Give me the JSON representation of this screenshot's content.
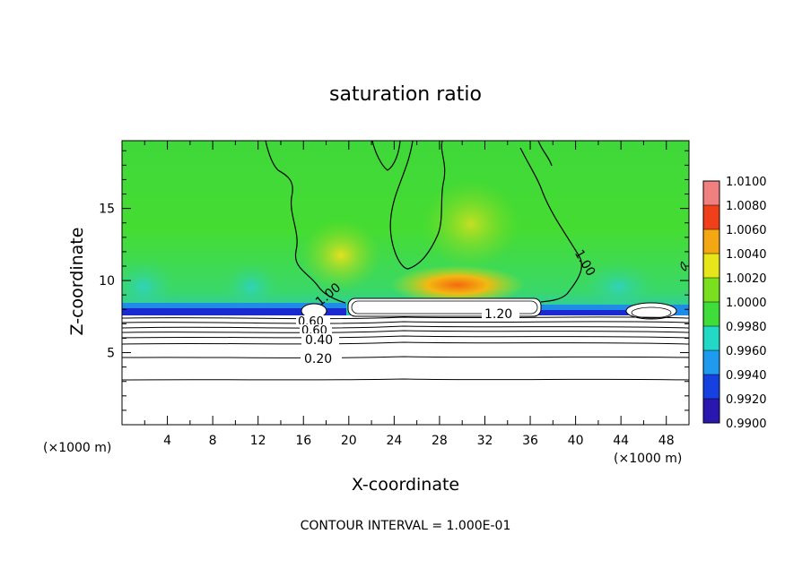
{
  "chart_data": {
    "type": "heatmap",
    "title": "saturation ratio",
    "xlabel": "X-coordinate",
    "ylabel": "Z-coordinate",
    "x_unit": "(×1000 m)",
    "x_ticks": [
      4,
      8,
      12,
      16,
      20,
      24,
      28,
      32,
      36,
      40,
      44,
      48
    ],
    "y_ticks": [
      5,
      10,
      15
    ],
    "xlim": [
      0,
      50
    ],
    "ylim": [
      0,
      19.7
    ],
    "colorbar": {
      "ticks": [
        "1.0100",
        "1.0080",
        "1.0060",
        "1.0040",
        "1.0020",
        "1.0000",
        "0.9980",
        "0.9960",
        "0.9940",
        "0.9920",
        "0.9900"
      ],
      "range": [
        0.99,
        1.01
      ],
      "colors": [
        "#6b0a8a",
        "#2a17b0",
        "#1640e0",
        "#1e9aef",
        "#22d9c6",
        "#3fdd3a",
        "#7adf1e",
        "#e6e61a",
        "#f3a712",
        "#f0401a",
        "#f08080"
      ]
    },
    "contour_labels": [
      "1.00",
      "1.00",
      "1.20",
      "0.60",
      "0.60",
      "0.40",
      "0.20"
    ],
    "contour_levels_below_cloud": [
      0.2,
      0.3,
      0.4,
      0.5,
      0.6,
      0.7,
      0.8,
      0.9
    ],
    "cloud_base_z": 7.6,
    "saturated_region_z": [
      7.6,
      19.7
    ],
    "footer": "CONTOUR INTERVAL = 1.000E-01"
  }
}
